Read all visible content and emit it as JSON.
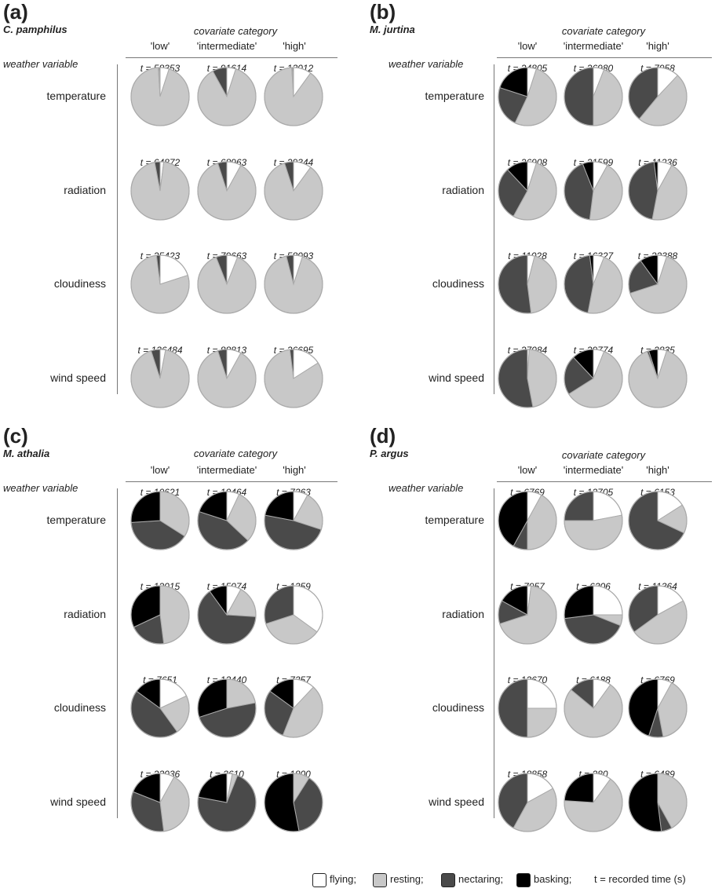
{
  "colors": {
    "flying": "#ffffff",
    "resting": "#c8c8c8",
    "nectaring": "#4a4a4a",
    "basking": "#000000",
    "stroke": "#aaaaaa"
  },
  "labels": {
    "covariate_title": "covariate category",
    "weather_title": "weather variable",
    "categories": [
      "'low'",
      "'intermediate'",
      "'high'"
    ],
    "rows": [
      "temperature",
      "radiation",
      "cloudiness",
      "wind speed"
    ]
  },
  "legend": {
    "flying": "flying;",
    "resting": "resting;",
    "nectaring": "nectaring;",
    "basking": "basking;",
    "note": "t = recorded time (s)"
  },
  "chart_data": [
    {
      "type": "pie",
      "panel": "(a)",
      "species": "C. pamphilus",
      "rows": [
        {
          "variable": "temperature",
          "pies": [
            {
              "t": "t = 58353",
              "flying": 0.05,
              "resting": 0.94,
              "nectaring": 0.005,
              "basking": 0.005
            },
            {
              "t": "t = 91614",
              "flying": 0.05,
              "resting": 0.87,
              "nectaring": 0.08,
              "basking": 0.0
            },
            {
              "t": "t = 13012",
              "flying": 0.1,
              "resting": 0.89,
              "nectaring": 0.005,
              "basking": 0.005
            }
          ]
        },
        {
          "variable": "radiation",
          "pies": [
            {
              "t": "t = 64872",
              "flying": 0.02,
              "resting": 0.95,
              "nectaring": 0.03,
              "basking": 0.0
            },
            {
              "t": "t = 68963",
              "flying": 0.08,
              "resting": 0.87,
              "nectaring": 0.05,
              "basking": 0.0
            },
            {
              "t": "t = 29344",
              "flying": 0.1,
              "resting": 0.85,
              "nectaring": 0.05,
              "basking": 0.0
            }
          ]
        },
        {
          "variable": "cloudiness",
          "pies": [
            {
              "t": "t = 25423",
              "flying": 0.2,
              "resting": 0.78,
              "nectaring": 0.02,
              "basking": 0.0
            },
            {
              "t": "t = 79663",
              "flying": 0.06,
              "resting": 0.88,
              "nectaring": 0.06,
              "basking": 0.0
            },
            {
              "t": "t = 58093",
              "flying": 0.05,
              "resting": 0.91,
              "nectaring": 0.04,
              "basking": 0.0
            }
          ]
        },
        {
          "variable": "wind speed",
          "pies": [
            {
              "t": "t = 136484",
              "flying": 0.03,
              "resting": 0.92,
              "nectaring": 0.05,
              "basking": 0.0
            },
            {
              "t": "t = 88813",
              "flying": 0.08,
              "resting": 0.87,
              "nectaring": 0.05,
              "basking": 0.0
            },
            {
              "t": "t = 26695",
              "flying": 0.16,
              "resting": 0.82,
              "nectaring": 0.02,
              "basking": 0.0
            }
          ]
        }
      ]
    },
    {
      "type": "pie",
      "panel": "(b)",
      "species": "M. jurtina",
      "rows": [
        {
          "variable": "temperature",
          "pies": [
            {
              "t": "t = 24805",
              "flying": 0.05,
              "resting": 0.52,
              "nectaring": 0.23,
              "basking": 0.2
            },
            {
              "t": "t = 26980",
              "flying": 0.06,
              "resting": 0.44,
              "nectaring": 0.5,
              "basking": 0.0
            },
            {
              "t": "t = 7958",
              "flying": 0.12,
              "resting": 0.49,
              "nectaring": 0.39,
              "basking": 0.0
            }
          ]
        },
        {
          "variable": "radiation",
          "pies": [
            {
              "t": "t = 26908",
              "flying": 0.05,
              "resting": 0.53,
              "nectaring": 0.3,
              "basking": 0.12
            },
            {
              "t": "t = 21599",
              "flying": 0.08,
              "resting": 0.44,
              "nectaring": 0.42,
              "basking": 0.06
            },
            {
              "t": "t = 11236",
              "flying": 0.08,
              "resting": 0.45,
              "nectaring": 0.45,
              "basking": 0.02
            }
          ]
        },
        {
          "variable": "cloudiness",
          "pies": [
            {
              "t": "t = 11028",
              "flying": 0.04,
              "resting": 0.44,
              "nectaring": 0.52,
              "basking": 0.0
            },
            {
              "t": "t = 16327",
              "flying": 0.06,
              "resting": 0.47,
              "nectaring": 0.45,
              "basking": 0.02
            },
            {
              "t": "t = 32388",
              "flying": 0.05,
              "resting": 0.65,
              "nectaring": 0.2,
              "basking": 0.1
            }
          ]
        },
        {
          "variable": "wind speed",
          "pies": [
            {
              "t": "t = 27084",
              "flying": 0.01,
              "resting": 0.46,
              "nectaring": 0.53,
              "basking": 0.0
            },
            {
              "t": "t = 29774",
              "flying": 0.06,
              "resting": 0.6,
              "nectaring": 0.22,
              "basking": 0.12
            },
            {
              "t": "t = 2835",
              "flying": 0.05,
              "resting": 0.89,
              "nectaring": 0.01,
              "basking": 0.05
            }
          ]
        }
      ]
    },
    {
      "type": "pie",
      "panel": "(c)",
      "species": "M. athalia",
      "rows": [
        {
          "variable": "temperature",
          "pies": [
            {
              "t": "t = 10621",
              "flying": 0.0,
              "resting": 0.34,
              "nectaring": 0.4,
              "basking": 0.26
            },
            {
              "t": "t = 10464",
              "flying": 0.07,
              "resting": 0.3,
              "nectaring": 0.43,
              "basking": 0.2
            },
            {
              "t": "t = 7363",
              "flying": 0.08,
              "resting": 0.22,
              "nectaring": 0.48,
              "basking": 0.22
            }
          ]
        },
        {
          "variable": "radiation",
          "pies": [
            {
              "t": "t = 12015",
              "flying": 0.0,
              "resting": 0.48,
              "nectaring": 0.2,
              "basking": 0.32
            },
            {
              "t": "t = 15074",
              "flying": 0.08,
              "resting": 0.18,
              "nectaring": 0.64,
              "basking": 0.1
            },
            {
              "t": "t = 1359",
              "flying": 0.35,
              "resting": 0.35,
              "nectaring": 0.3,
              "basking": 0.0
            }
          ]
        },
        {
          "variable": "cloudiness",
          "pies": [
            {
              "t": "t = 7651",
              "flying": 0.18,
              "resting": 0.22,
              "nectaring": 0.45,
              "basking": 0.15
            },
            {
              "t": "t = 13440",
              "flying": 0.0,
              "resting": 0.22,
              "nectaring": 0.48,
              "basking": 0.3
            },
            {
              "t": "t = 7357",
              "flying": 0.12,
              "resting": 0.44,
              "nectaring": 0.29,
              "basking": 0.15
            }
          ]
        },
        {
          "variable": "wind speed",
          "pies": [
            {
              "t": "t = 23036",
              "flying": 0.08,
              "resting": 0.4,
              "nectaring": 0.33,
              "basking": 0.19
            },
            {
              "t": "t = 3610",
              "flying": 0.03,
              "resting": 0.03,
              "nectaring": 0.72,
              "basking": 0.22
            },
            {
              "t": "t = 1800",
              "flying": 0.0,
              "resting": 0.09,
              "nectaring": 0.38,
              "basking": 0.53
            }
          ]
        }
      ]
    },
    {
      "type": "pie",
      "panel": "(d)",
      "species": "P. argus",
      "rows": [
        {
          "variable": "temperature",
          "pies": [
            {
              "t": "t = 6769",
              "flying": 0.08,
              "resting": 0.42,
              "nectaring": 0.08,
              "basking": 0.42
            },
            {
              "t": "t = 12705",
              "flying": 0.22,
              "resting": 0.53,
              "nectaring": 0.25,
              "basking": 0.0
            },
            {
              "t": "t = 6153",
              "flying": 0.16,
              "resting": 0.16,
              "nectaring": 0.68,
              "basking": 0.0
            }
          ]
        },
        {
          "variable": "radiation",
          "pies": [
            {
              "t": "t = 7957",
              "flying": 0.02,
              "resting": 0.68,
              "nectaring": 0.13,
              "basking": 0.17
            },
            {
              "t": "t = 6306",
              "flying": 0.25,
              "resting": 0.06,
              "nectaring": 0.42,
              "basking": 0.27
            },
            {
              "t": "t = 11364",
              "flying": 0.17,
              "resting": 0.48,
              "nectaring": 0.35,
              "basking": 0.0
            }
          ]
        },
        {
          "variable": "cloudiness",
          "pies": [
            {
              "t": "t = 12670",
              "flying": 0.25,
              "resting": 0.25,
              "nectaring": 0.5,
              "basking": 0.0
            },
            {
              "t": "t = 6188",
              "flying": 0.1,
              "resting": 0.76,
              "nectaring": 0.14,
              "basking": 0.0
            },
            {
              "t": "t = 6769",
              "flying": 0.08,
              "resting": 0.39,
              "nectaring": 0.08,
              "basking": 0.45
            }
          ]
        },
        {
          "variable": "wind speed",
          "pies": [
            {
              "t": "t = 18858",
              "flying": 0.17,
              "resting": 0.41,
              "nectaring": 0.42,
              "basking": 0.0
            },
            {
              "t": "t = 280",
              "flying": 0.1,
              "resting": 0.66,
              "nectaring": 0.0,
              "basking": 0.24
            },
            {
              "t": "t = 6489",
              "flying": 0.0,
              "resting": 0.42,
              "nectaring": 0.06,
              "basking": 0.52
            }
          ]
        }
      ]
    }
  ]
}
